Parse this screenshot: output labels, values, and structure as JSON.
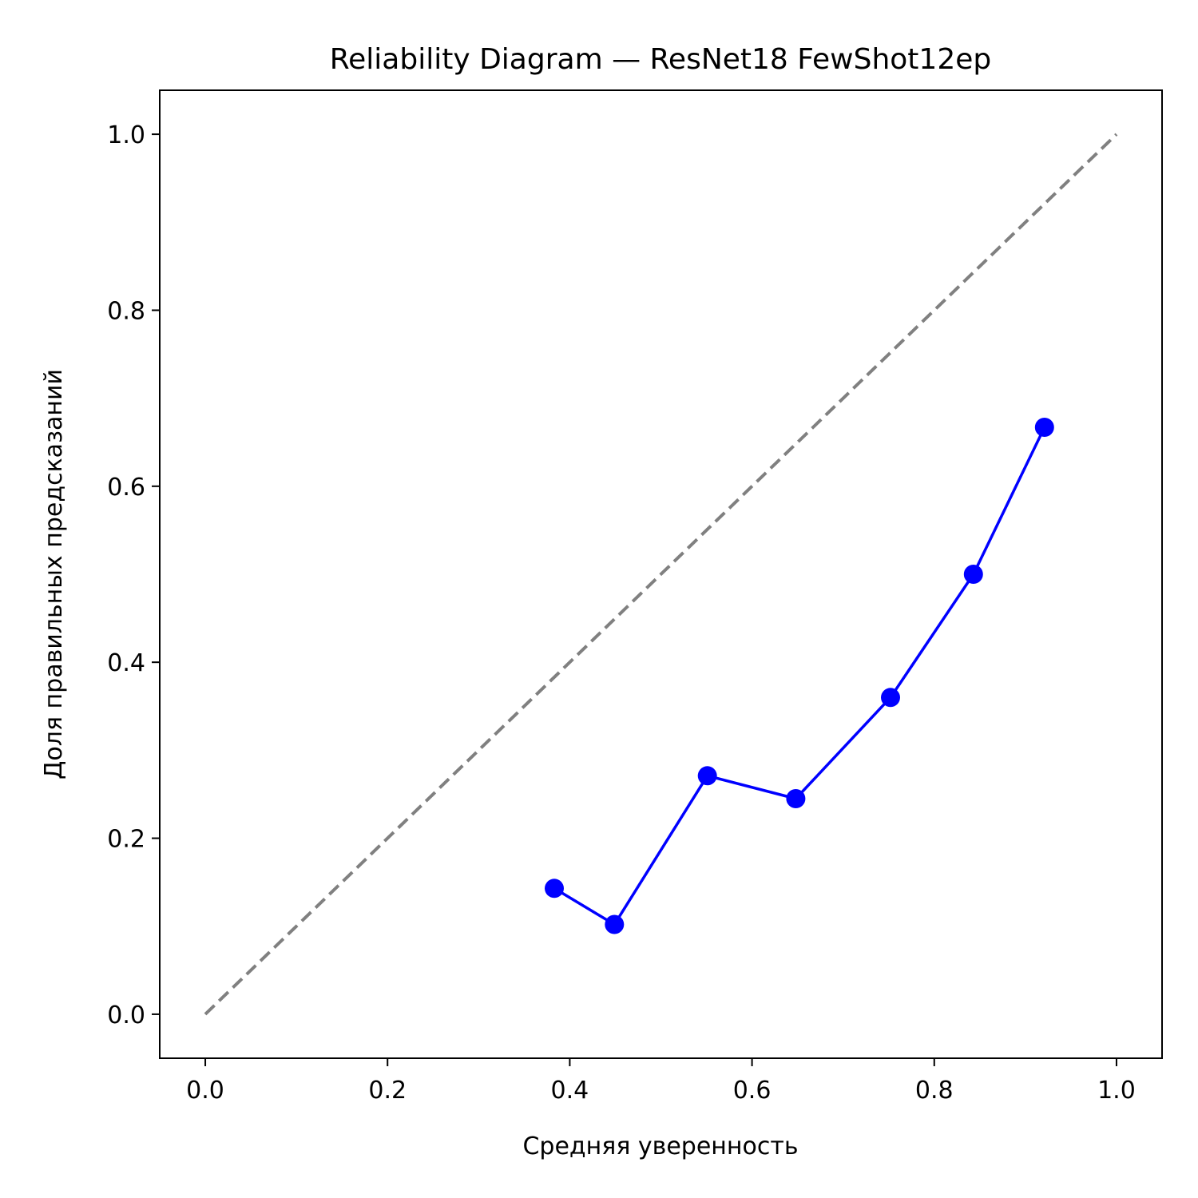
{
  "chart_data": {
    "type": "line",
    "title": "Reliability Diagram — ResNet18 FewShot12ep",
    "xlabel": "Средняя уверенность",
    "ylabel": "Доля правильных предсказаний",
    "xlim": [
      -0.05,
      1.05
    ],
    "ylim": [
      -0.05,
      1.05
    ],
    "xticks": [
      {
        "value": 0.0,
        "label": "0.0"
      },
      {
        "value": 0.2,
        "label": "0.2"
      },
      {
        "value": 0.4,
        "label": "0.4"
      },
      {
        "value": 0.6,
        "label": "0.6"
      },
      {
        "value": 0.8,
        "label": "0.8"
      },
      {
        "value": 1.0,
        "label": "1.0"
      }
    ],
    "yticks": [
      {
        "value": 0.0,
        "label": "0.0"
      },
      {
        "value": 0.2,
        "label": "0.2"
      },
      {
        "value": 0.4,
        "label": "0.4"
      },
      {
        "value": 0.6,
        "label": "0.6"
      },
      {
        "value": 0.8,
        "label": "0.8"
      },
      {
        "value": 1.0,
        "label": "1.0"
      }
    ],
    "grid": false,
    "series": [
      {
        "style": "dashed",
        "color": "#808080",
        "markers": false,
        "x": [
          0.0,
          1.0
        ],
        "y": [
          0.0,
          1.0
        ]
      },
      {
        "style": "solid",
        "color": "#0000ff",
        "markers": true,
        "x": [
          0.383,
          0.449,
          0.551,
          0.648,
          0.752,
          0.843,
          0.921
        ],
        "y": [
          0.143,
          0.102,
          0.271,
          0.245,
          0.36,
          0.5,
          0.667
        ]
      }
    ]
  }
}
